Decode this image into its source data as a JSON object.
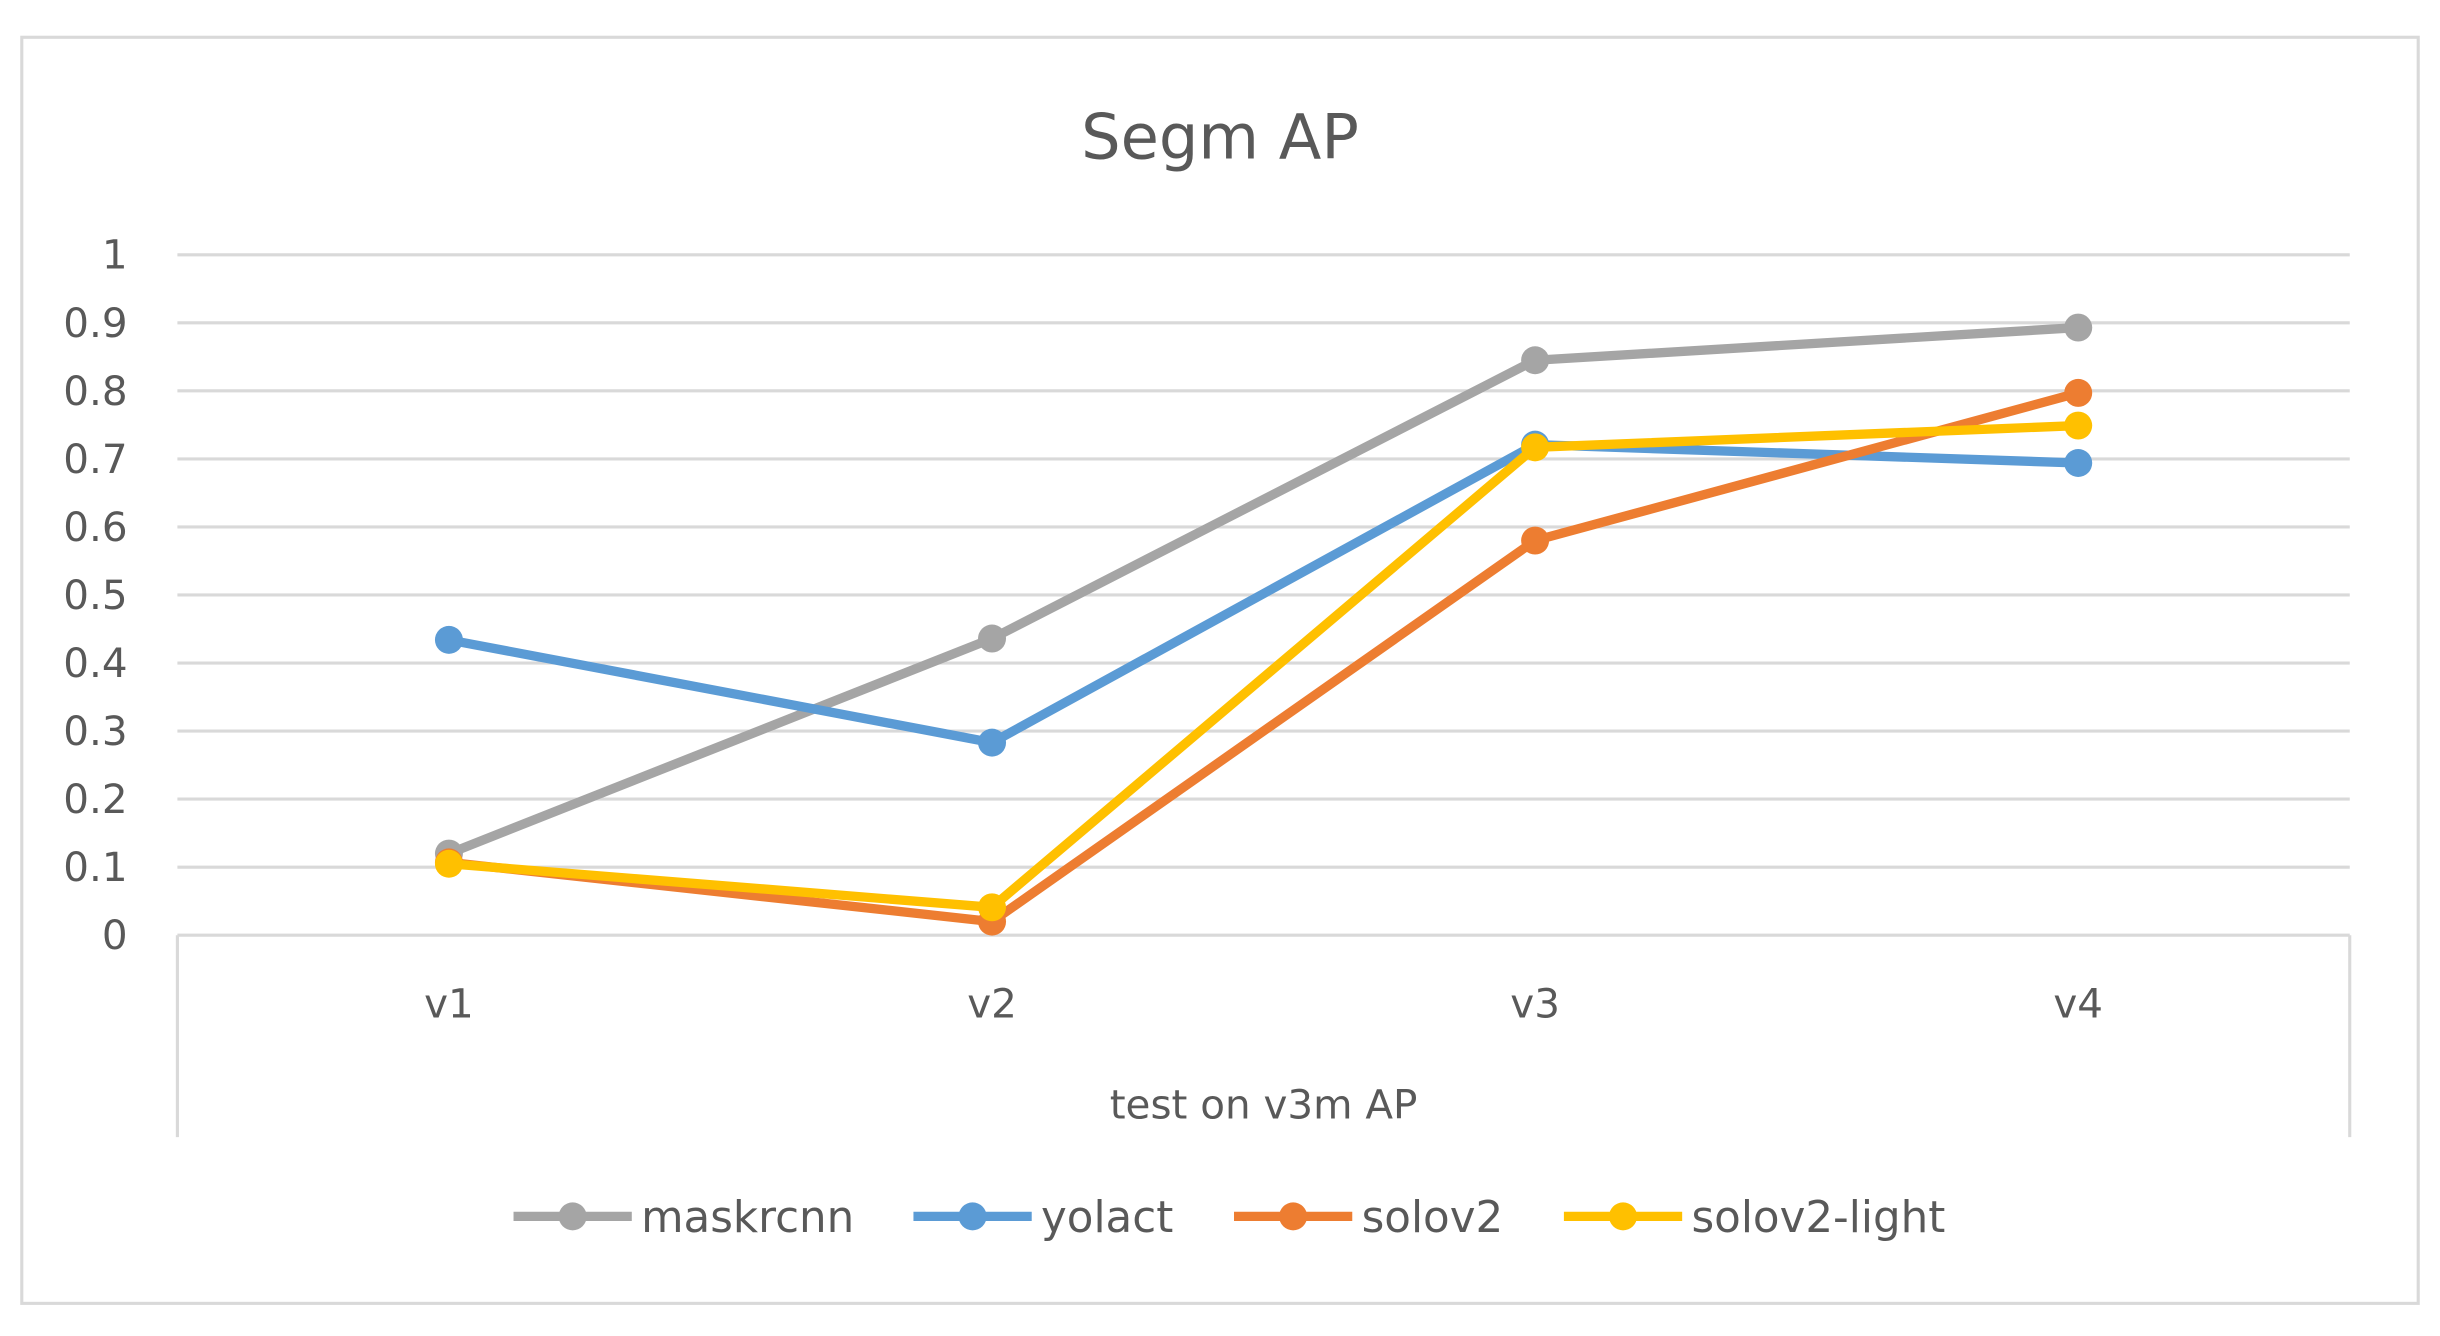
{
  "chart_data": {
    "type": "line",
    "title": "Segm AP",
    "xlabel": "test on v3m AP",
    "ylabel": "",
    "categories": [
      "v1",
      "v2",
      "v3",
      "v4"
    ],
    "ylim": [
      0,
      1
    ],
    "yticks": [
      "0",
      "0.1",
      "0.2",
      "0.3",
      "0.4",
      "0.5",
      "0.6",
      "0.7",
      "0.8",
      "0.9",
      "1"
    ],
    "grid": true,
    "legend_position": "bottom",
    "series": [
      {
        "name": "maskrcnn",
        "color": "#a5a5a5",
        "values": [
          0.12,
          0.436,
          0.845,
          0.893
        ]
      },
      {
        "name": "yolact",
        "color": "#5b9bd5",
        "values": [
          0.434,
          0.283,
          0.721,
          0.694
        ]
      },
      {
        "name": "solov2",
        "color": "#ed7d31",
        "values": [
          0.107,
          0.02,
          0.58,
          0.797
        ]
      },
      {
        "name": "solov2-light",
        "color": "#ffc000",
        "values": [
          0.105,
          0.041,
          0.717,
          0.749
        ]
      }
    ]
  }
}
